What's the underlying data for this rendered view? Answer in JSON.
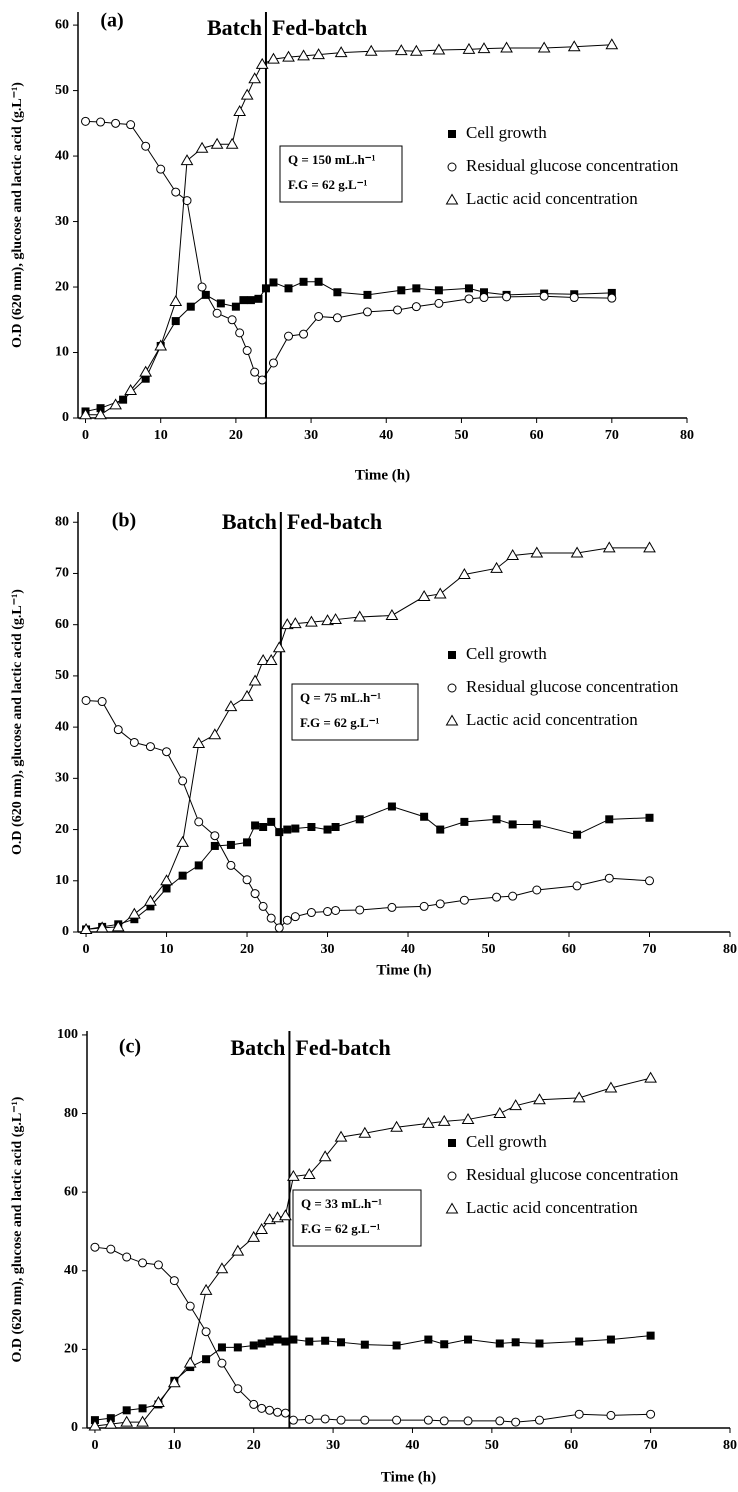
{
  "chart_data": [
    {
      "type": "line",
      "panel_label": "(a)",
      "x_label": "Time (h)",
      "y_label": "O.D (620 nm), glucose and lactic acid (g.L⁻¹)",
      "phase_label_left": "Batch",
      "phase_label_right": "Fed-batch",
      "phase_switch_x": 24,
      "annotation_lines": [
        "Q = 150 mL.h⁻¹",
        "F.G = 62 g.L⁻¹"
      ],
      "xlim": [
        -1,
        80
      ],
      "xticks": [
        0,
        10,
        20,
        30,
        40,
        50,
        60,
        70,
        80
      ],
      "ylim": [
        0,
        62
      ],
      "yticks": [
        0,
        10,
        20,
        30,
        40,
        50,
        60
      ],
      "series": [
        {
          "name": "Cell growth",
          "color": "#000000",
          "marker": "square",
          "x": [
            0,
            2,
            5,
            8,
            10,
            12,
            14,
            16,
            18,
            20,
            21,
            22,
            23,
            24,
            25,
            27,
            29,
            31,
            33.5,
            37.5,
            42,
            44,
            47,
            51,
            53,
            56,
            61,
            65,
            70
          ],
          "values": [
            1.0,
            1.5,
            2.8,
            6,
            11,
            14.8,
            17,
            18.8,
            17.5,
            17,
            18,
            18,
            18.2,
            19.8,
            20.7,
            19.8,
            20.8,
            20.8,
            19.2,
            18.8,
            19.5,
            19.8,
            19.5,
            19.8,
            19.2,
            18.8,
            19,
            18.9,
            19.1
          ]
        },
        {
          "name": "Residual glucose concentration",
          "color": "#000000",
          "marker": "circle",
          "x": [
            0,
            2,
            4,
            6,
            8,
            10,
            12,
            13.5,
            15.5,
            17.5,
            19.5,
            20.5,
            21.5,
            22.5,
            23.5,
            25,
            27,
            29,
            31,
            33.5,
            37.5,
            41.5,
            44,
            47,
            51,
            53,
            56,
            61,
            65,
            70
          ],
          "values": [
            45.3,
            45.2,
            45,
            44.8,
            41.5,
            38,
            34.5,
            33.2,
            20,
            16,
            15,
            13,
            10.3,
            7,
            5.8,
            8.4,
            12.5,
            12.8,
            15.5,
            15.3,
            16.2,
            16.5,
            17,
            17.5,
            18.2,
            18.4,
            18.5,
            18.6,
            18.4,
            18.3
          ]
        },
        {
          "name": "Lactic acid concentration",
          "color": "#000000",
          "marker": "triangle",
          "x": [
            0,
            2,
            4,
            6,
            8,
            10,
            12,
            13.5,
            15.5,
            17.5,
            19.5,
            20.5,
            21.5,
            22.5,
            23.5,
            25,
            27,
            29,
            31,
            34,
            38,
            42,
            44,
            47,
            51,
            53,
            56,
            61,
            65,
            70
          ],
          "values": [
            0.5,
            0.5,
            2,
            4.2,
            7,
            11,
            17.8,
            39.3,
            41.2,
            41.8,
            41.8,
            46.8,
            49.3,
            51.8,
            54,
            54.8,
            55.1,
            55.3,
            55.5,
            55.8,
            56,
            56.1,
            56,
            56.2,
            56.3,
            56.4,
            56.5,
            56.5,
            56.7,
            57
          ]
        }
      ]
    },
    {
      "type": "line",
      "panel_label": "(b)",
      "x_label": "Time (h)",
      "y_label": "O.D (620 nm), glucose and lactic acid (g.L⁻¹)",
      "phase_label_left": "Batch",
      "phase_label_right": "Fed-batch",
      "phase_switch_x": 24.2,
      "annotation_lines": [
        "Q = 75 mL.h⁻¹",
        "F.G = 62 g.L⁻¹"
      ],
      "xlim": [
        -1,
        80
      ],
      "xticks": [
        0,
        10,
        20,
        30,
        40,
        50,
        60,
        70,
        80
      ],
      "ylim": [
        0,
        82
      ],
      "yticks": [
        0,
        10,
        20,
        30,
        40,
        50,
        60,
        70,
        80
      ],
      "series": [
        {
          "name": "Cell growth",
          "color": "#000000",
          "marker": "square",
          "x": [
            0,
            2,
            4,
            6,
            8,
            10,
            12,
            14,
            16,
            18,
            20,
            21,
            22,
            23,
            24,
            25,
            26,
            28,
            30,
            31,
            34,
            38,
            42,
            44,
            47,
            51,
            53,
            56,
            61,
            65,
            70
          ],
          "values": [
            0.5,
            1,
            1.5,
            2.5,
            5,
            8.5,
            11,
            13,
            16.8,
            17,
            17.5,
            20.8,
            20.5,
            21.5,
            19.5,
            20,
            20.2,
            20.5,
            20,
            20.5,
            22,
            24.5,
            22.5,
            20,
            21.5,
            22,
            21,
            21,
            19,
            22,
            22.3
          ]
        },
        {
          "name": "Residual glucose concentration",
          "color": "#000000",
          "marker": "circle",
          "x": [
            0,
            2,
            4,
            6,
            8,
            10,
            12,
            14,
            16,
            18,
            20,
            21,
            22,
            23,
            24,
            25,
            26,
            28,
            30,
            31,
            34,
            38,
            42,
            44,
            47,
            51,
            53,
            56,
            61,
            65,
            70
          ],
          "values": [
            45.2,
            45,
            39.5,
            37,
            36.2,
            35.2,
            29.5,
            21.5,
            18.8,
            13,
            10.2,
            7.5,
            5,
            2.7,
            0.8,
            2.3,
            3,
            3.8,
            4,
            4.2,
            4.3,
            4.8,
            5,
            5.5,
            6.2,
            6.8,
            7,
            8.2,
            9,
            10.5,
            10
          ]
        },
        {
          "name": "Lactic acid concentration",
          "color": "#000000",
          "marker": "triangle",
          "x": [
            0,
            2,
            4,
            6,
            8,
            10,
            12,
            14,
            16,
            18,
            20,
            21,
            22,
            23,
            24,
            25,
            26,
            28,
            30,
            31,
            34,
            38,
            42,
            44,
            47,
            51,
            53,
            56,
            61,
            65,
            70
          ],
          "values": [
            0.5,
            0.8,
            1,
            3.5,
            6,
            10,
            17.5,
            36.8,
            38.5,
            44,
            46,
            49,
            53,
            53,
            55.5,
            60,
            60.2,
            60.5,
            60.8,
            61,
            61.5,
            61.8,
            65.5,
            66,
            69.8,
            71,
            73.5,
            74,
            74,
            75,
            75
          ]
        }
      ]
    },
    {
      "type": "line",
      "panel_label": "(c)",
      "x_label": "Time (h)",
      "y_label": "O.D (620 nm), glucose and lactic acid (g.L⁻¹)",
      "phase_label_left": "Batch",
      "phase_label_right": "Fed-batch",
      "phase_switch_x": 24.5,
      "annotation_lines": [
        "Q = 33 mL.h⁻¹",
        "F.G = 62 g.L⁻¹"
      ],
      "xlim": [
        -1,
        80
      ],
      "xticks": [
        0,
        10,
        20,
        30,
        40,
        50,
        60,
        70,
        80
      ],
      "ylim": [
        0,
        101
      ],
      "yticks": [
        0,
        20,
        40,
        60,
        80,
        100
      ],
      "series": [
        {
          "name": "Cell growth",
          "color": "#000000",
          "marker": "square",
          "x": [
            0,
            2,
            4,
            6,
            8,
            10,
            12,
            14,
            16,
            18,
            20,
            21,
            22,
            23,
            24,
            25,
            27,
            29,
            31,
            34,
            38,
            42,
            44,
            47,
            51,
            53,
            56,
            61,
            65,
            70
          ],
          "values": [
            2,
            2.5,
            4.5,
            5,
            6,
            12,
            15.5,
            17.5,
            20.5,
            20.5,
            21,
            21.5,
            22,
            22.5,
            22,
            22.5,
            22,
            22.2,
            21.8,
            21.2,
            21,
            22.5,
            21.3,
            22.5,
            21.5,
            21.8,
            21.5,
            22,
            22.5,
            23.5
          ]
        },
        {
          "name": "Residual glucose concentration",
          "color": "#000000",
          "marker": "circle",
          "x": [
            0,
            2,
            4,
            6,
            8,
            10,
            12,
            14,
            16,
            18,
            20,
            21,
            22,
            23,
            24,
            25,
            27,
            29,
            31,
            34,
            38,
            42,
            44,
            47,
            51,
            53,
            56,
            61,
            65,
            70
          ],
          "values": [
            46,
            45.5,
            43.5,
            42,
            41.5,
            37.5,
            31,
            24.5,
            16.5,
            10,
            6,
            5,
            4.5,
            4,
            3.8,
            2,
            2.2,
            2.3,
            2,
            2,
            2,
            2,
            1.8,
            1.8,
            1.8,
            1.5,
            2,
            3.5,
            3.2,
            3.5
          ]
        },
        {
          "name": "Lactic acid concentration",
          "color": "#000000",
          "marker": "triangle",
          "x": [
            0,
            2,
            4,
            6,
            8,
            10,
            12,
            14,
            16,
            18,
            20,
            21,
            22,
            23,
            24,
            25,
            27,
            29,
            31,
            34,
            38,
            42,
            44,
            47,
            51,
            53,
            56,
            61,
            65,
            70
          ],
          "values": [
            0.5,
            1,
            1.5,
            1.5,
            6.5,
            11.5,
            16.5,
            35,
            40.5,
            45,
            48.5,
            50.5,
            53,
            53.5,
            54,
            64,
            64.5,
            69,
            74,
            75,
            76.5,
            77.5,
            78,
            78.5,
            80,
            82,
            83.5,
            84,
            86.5,
            89
          ]
        }
      ]
    }
  ]
}
